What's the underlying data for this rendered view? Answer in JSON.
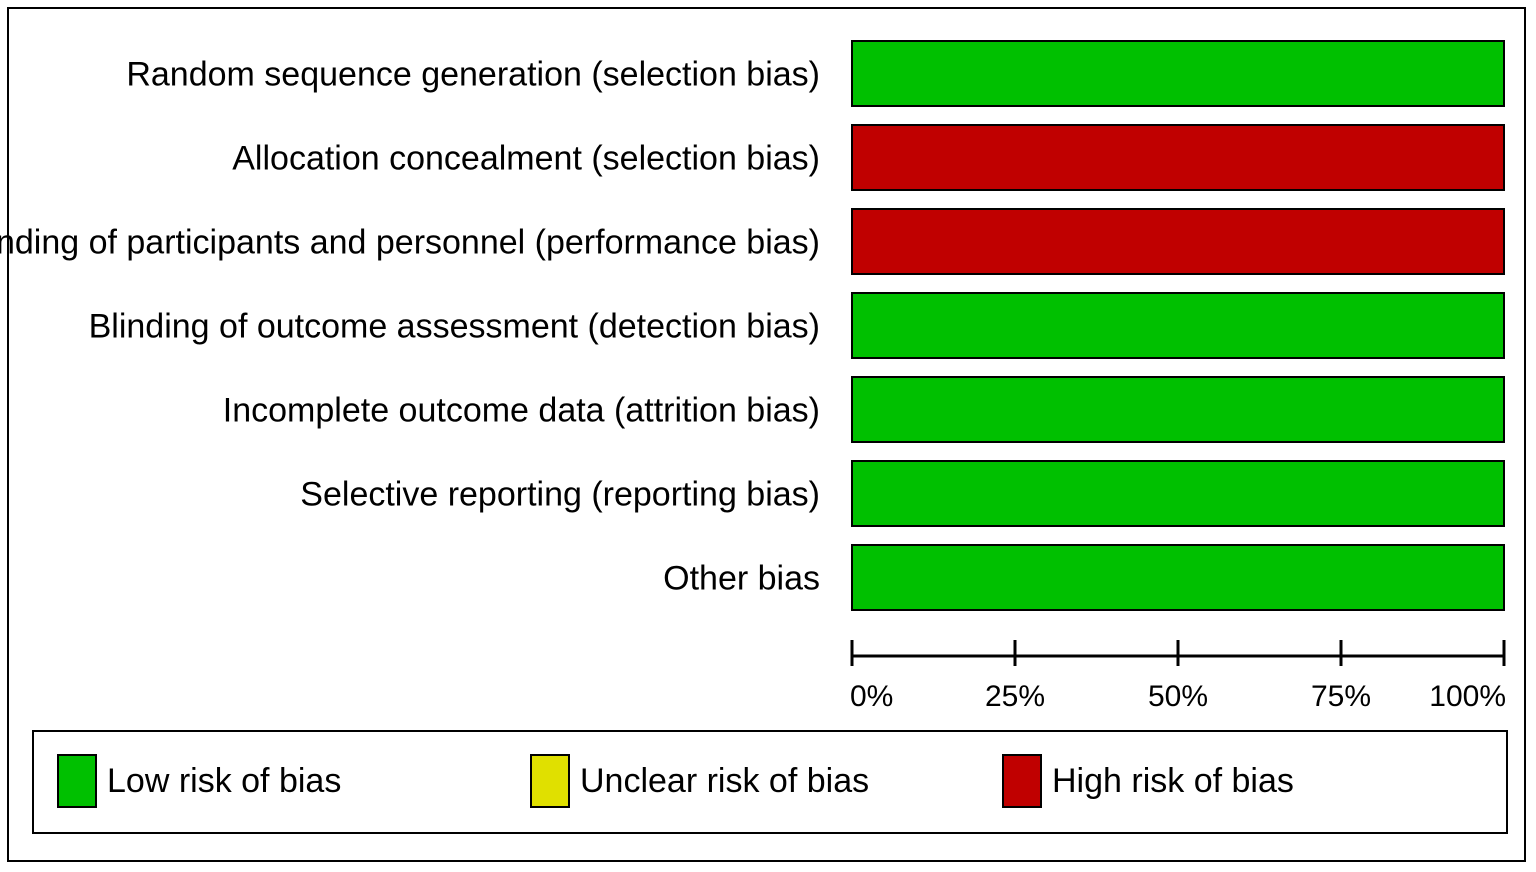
{
  "chart_data": {
    "type": "bar",
    "orientation": "horizontal",
    "stacked": true,
    "categories": [
      "Random sequence generation (selection bias)",
      "Allocation concealment (selection bias)",
      "Blinding of participants and personnel (performance bias)",
      "Blinding of outcome assessment (detection bias)",
      "Incomplete outcome data (attrition bias)",
      "Selective reporting (reporting bias)",
      "Other bias"
    ],
    "series": [
      {
        "name": "Low risk of bias",
        "color": "#00c000",
        "values": [
          100,
          0,
          0,
          100,
          100,
          100,
          100
        ]
      },
      {
        "name": "Unclear risk of bias",
        "color": "#e0e000",
        "values": [
          0,
          0,
          0,
          0,
          0,
          0,
          0
        ]
      },
      {
        "name": "High risk of bias",
        "color": "#c00000",
        "values": [
          0,
          100,
          100,
          0,
          0,
          0,
          0
        ]
      }
    ],
    "xlim": [
      0,
      100
    ],
    "xticks": [
      0,
      25,
      50,
      75,
      100
    ],
    "xtick_labels": [
      "0%",
      "25%",
      "50%",
      "75%",
      "100%"
    ],
    "title": "",
    "xlabel": "",
    "ylabel": "",
    "grid": false,
    "legend_position": "bottom"
  },
  "legend": {
    "low": {
      "label": "Low risk of bias",
      "color": "#00c000"
    },
    "unclear": {
      "label": "Unclear risk of bias",
      "color": "#e0e000"
    },
    "high": {
      "label": "High risk of bias",
      "color": "#c00000"
    }
  }
}
